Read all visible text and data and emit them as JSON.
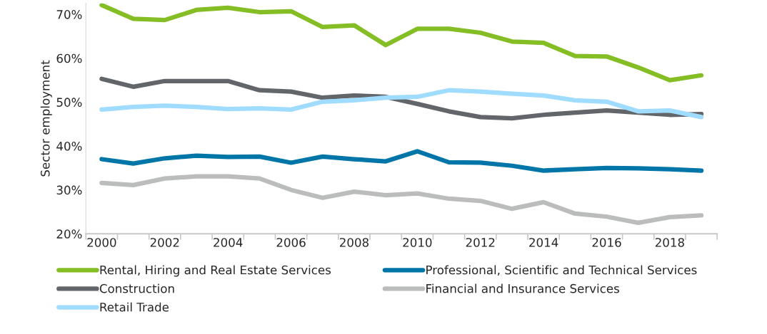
{
  "chart_data": {
    "type": "line",
    "ylabel": "Sector employment",
    "categories": [
      "2000",
      null,
      "2002",
      null,
      "2004",
      null,
      "2006",
      null,
      "2008",
      null,
      "2010",
      null,
      "2012",
      null,
      "2014",
      null,
      "2016",
      null,
      "2018",
      null
    ],
    "series": [
      {
        "name": "Rental, Hiring and Real Estate Services",
        "color": "#84bd24",
        "values": [
          72.1,
          69.0,
          68.7,
          71.0,
          71.5,
          70.5,
          70.7,
          67.1,
          67.5,
          63.0,
          66.7,
          66.7,
          65.8,
          63.8,
          63.5,
          60.5,
          60.4,
          57.9,
          55.0,
          56.1
        ]
      },
      {
        "name": "Professional, Scientific and Technical Services",
        "color": "#0076a8",
        "values": [
          37.0,
          36.0,
          37.2,
          37.8,
          37.5,
          37.6,
          36.2,
          37.6,
          37.0,
          36.5,
          38.8,
          36.3,
          36.2,
          35.5,
          34.4,
          34.7,
          35.0,
          34.9,
          34.7,
          34.4
        ]
      },
      {
        "name": "Construction",
        "color": "#62666a",
        "values": [
          55.3,
          53.5,
          54.8,
          54.8,
          54.8,
          52.7,
          52.4,
          51.0,
          51.5,
          51.2,
          49.6,
          47.9,
          46.6,
          46.3,
          47.1,
          47.6,
          48.1,
          47.6,
          47.1,
          47.3
        ]
      },
      {
        "name": "Financial and Insurance Services",
        "color": "#bbbcbc",
        "values": [
          31.6,
          31.1,
          32.6,
          33.1,
          33.1,
          32.6,
          30.0,
          28.2,
          29.6,
          28.8,
          29.2,
          28.0,
          27.5,
          25.7,
          27.2,
          24.6,
          23.9,
          22.5,
          23.8,
          24.2
        ]
      },
      {
        "name": "Retail Trade",
        "color": "#a0dcff",
        "values": [
          48.3,
          48.9,
          49.2,
          48.9,
          48.4,
          48.6,
          48.3,
          50.1,
          50.4,
          51.0,
          51.2,
          52.7,
          52.4,
          51.9,
          51.5,
          50.4,
          50.1,
          47.9,
          48.1,
          46.6
        ]
      }
    ],
    "ylim": [
      20,
      72.5
    ],
    "yticks": [
      {
        "value": 20,
        "label": "20%"
      },
      {
        "value": 30,
        "label": "30%"
      },
      {
        "value": 40,
        "label": "40%"
      },
      {
        "value": 50,
        "label": "50%"
      },
      {
        "value": 60,
        "label": "60%"
      },
      {
        "value": 70,
        "label": "70%"
      }
    ],
    "grid": false,
    "legend": "bottom",
    "marker": "none",
    "line_style": "solid"
  }
}
